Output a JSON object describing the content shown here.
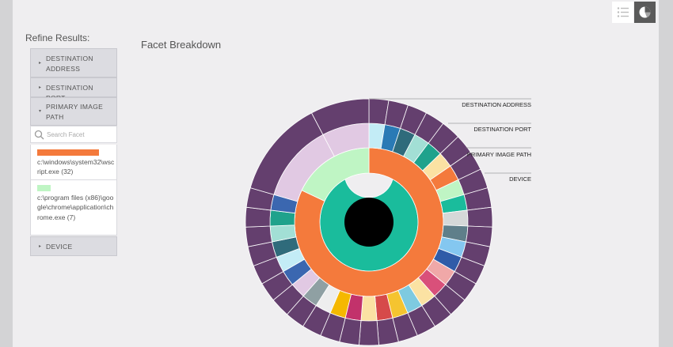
{
  "view_toggle": {
    "list_icon": "list-icon",
    "pie_icon": "pie-chart-icon",
    "active": "pie"
  },
  "sidebar": {
    "title": "Refine Results:",
    "facets": [
      {
        "label": "DESTINATION ADDRESS",
        "expanded": false
      },
      {
        "label": "DESTINATION PORT",
        "expanded": false
      },
      {
        "label": "PRIMARY IMAGE PATH",
        "expanded": true
      },
      {
        "label": "DEVICE",
        "expanded": false
      }
    ],
    "search": {
      "placeholder": "Search Facet",
      "value": ""
    },
    "results": [
      {
        "text": "c:\\windows\\system32\\wscript.exe (32)",
        "color": "#f47a3c",
        "share": 0.82
      },
      {
        "text": "c:\\program files (x86)\\google\\chrome\\application\\chrome.exe (7)",
        "color": "#bff5c4",
        "share": 0.18
      }
    ]
  },
  "main": {
    "title": "Facet Breakdown"
  },
  "chart_data": {
    "type": "sunburst",
    "levels": [
      "DESTINATION ADDRESS",
      "DESTINATION PORT",
      "PRIMARY IMAGE PATH",
      "DEVICE"
    ],
    "legend_labels": [
      "DESTINATION ADDRESS",
      "DESTINATION PORT",
      "PRIMARY IMAGE PATH",
      "DEVICE"
    ],
    "center_color": "#000000",
    "rings": [
      {
        "name": "DEVICE",
        "segments": [
          {
            "value": 39,
            "color": "#1abc9c"
          }
        ]
      },
      {
        "name": "PRIMARY IMAGE PATH",
        "segments": [
          {
            "value": 32,
            "color": "#f47a3c"
          },
          {
            "value": 7,
            "color": "#bff5c4"
          }
        ]
      },
      {
        "name": "DESTINATION PORT",
        "segments": [
          {
            "value": 32,
            "color": "#f47a3c"
          },
          {
            "value": 3,
            "color": "#d5d8d8"
          },
          {
            "value": 4,
            "color": "#bff5c4"
          }
        ]
      },
      {
        "name": "DESTINATION ADDRESS",
        "segments": [
          {
            "value": 1,
            "color": "#c3ecf6"
          },
          {
            "value": 1,
            "color": "#2a7ab5"
          },
          {
            "value": 1,
            "color": "#2f6b7b"
          },
          {
            "value": 1,
            "color": "#a2dfd5"
          },
          {
            "value": 1,
            "color": "#1fa28c"
          },
          {
            "value": 1,
            "color": "#fbe2a3"
          },
          {
            "value": 1,
            "color": "#f47a3c"
          },
          {
            "value": 1,
            "color": "#bff5c4"
          },
          {
            "value": 1,
            "color": "#1abc9c"
          },
          {
            "value": 1,
            "color": "#d5d8d8"
          },
          {
            "value": 1,
            "color": "#5f7f8a"
          },
          {
            "value": 1,
            "color": "#84c7f0"
          },
          {
            "value": 1,
            "color": "#2f5ba8"
          },
          {
            "value": 1,
            "color": "#f0a8a8"
          },
          {
            "value": 1,
            "color": "#d9507a"
          },
          {
            "value": 1,
            "color": "#fbe2a3"
          },
          {
            "value": 1,
            "color": "#7ecae0"
          },
          {
            "value": 1,
            "color": "#f5c430"
          },
          {
            "value": 1,
            "color": "#d64a4a"
          },
          {
            "value": 1,
            "color": "#fbe2a3"
          },
          {
            "value": 1,
            "color": "#c2326b"
          },
          {
            "value": 1,
            "color": "#f5b800"
          },
          {
            "value": 1,
            "color": "#eeeeee"
          },
          {
            "value": 1,
            "color": "#8fa0a3"
          },
          {
            "value": 1,
            "color": "#e1c9e3"
          },
          {
            "value": 1,
            "color": "#3b67b0"
          },
          {
            "value": 1,
            "color": "#c3ecf6"
          },
          {
            "value": 1,
            "color": "#2f6b7b"
          },
          {
            "value": 1,
            "color": "#a2dfd5"
          },
          {
            "value": 1,
            "color": "#1fa28c"
          },
          {
            "value": 1,
            "color": "#3b67b0"
          },
          {
            "value": 5,
            "color": "#e1c9e3"
          },
          {
            "value": 3,
            "color": "#e1c9e3"
          }
        ]
      },
      {
        "name": "outer",
        "segments": [
          {
            "value": 1,
            "color": "#643f6e"
          },
          {
            "value": 1,
            "color": "#643f6e"
          },
          {
            "value": 1,
            "color": "#643f6e"
          },
          {
            "value": 1,
            "color": "#643f6e"
          },
          {
            "value": 1,
            "color": "#643f6e"
          },
          {
            "value": 1,
            "color": "#643f6e"
          },
          {
            "value": 1,
            "color": "#643f6e"
          },
          {
            "value": 1,
            "color": "#643f6e"
          },
          {
            "value": 1,
            "color": "#643f6e"
          },
          {
            "value": 1,
            "color": "#643f6e"
          },
          {
            "value": 1,
            "color": "#643f6e"
          },
          {
            "value": 1,
            "color": "#643f6e"
          },
          {
            "value": 1,
            "color": "#643f6e"
          },
          {
            "value": 1,
            "color": "#643f6e"
          },
          {
            "value": 1,
            "color": "#643f6e"
          },
          {
            "value": 1,
            "color": "#643f6e"
          },
          {
            "value": 1,
            "color": "#643f6e"
          },
          {
            "value": 1,
            "color": "#643f6e"
          },
          {
            "value": 1,
            "color": "#643f6e"
          },
          {
            "value": 1,
            "color": "#643f6e"
          },
          {
            "value": 1,
            "color": "#643f6e"
          },
          {
            "value": 1,
            "color": "#643f6e"
          },
          {
            "value": 1,
            "color": "#643f6e"
          },
          {
            "value": 1,
            "color": "#643f6e"
          },
          {
            "value": 1,
            "color": "#643f6e"
          },
          {
            "value": 1,
            "color": "#643f6e"
          },
          {
            "value": 1,
            "color": "#643f6e"
          },
          {
            "value": 1,
            "color": "#643f6e"
          },
          {
            "value": 1,
            "color": "#643f6e"
          },
          {
            "value": 1,
            "color": "#643f6e"
          },
          {
            "value": 1,
            "color": "#643f6e"
          },
          {
            "value": 5,
            "color": "#643f6e"
          },
          {
            "value": 3,
            "color": "#643f6e"
          }
        ]
      }
    ]
  }
}
